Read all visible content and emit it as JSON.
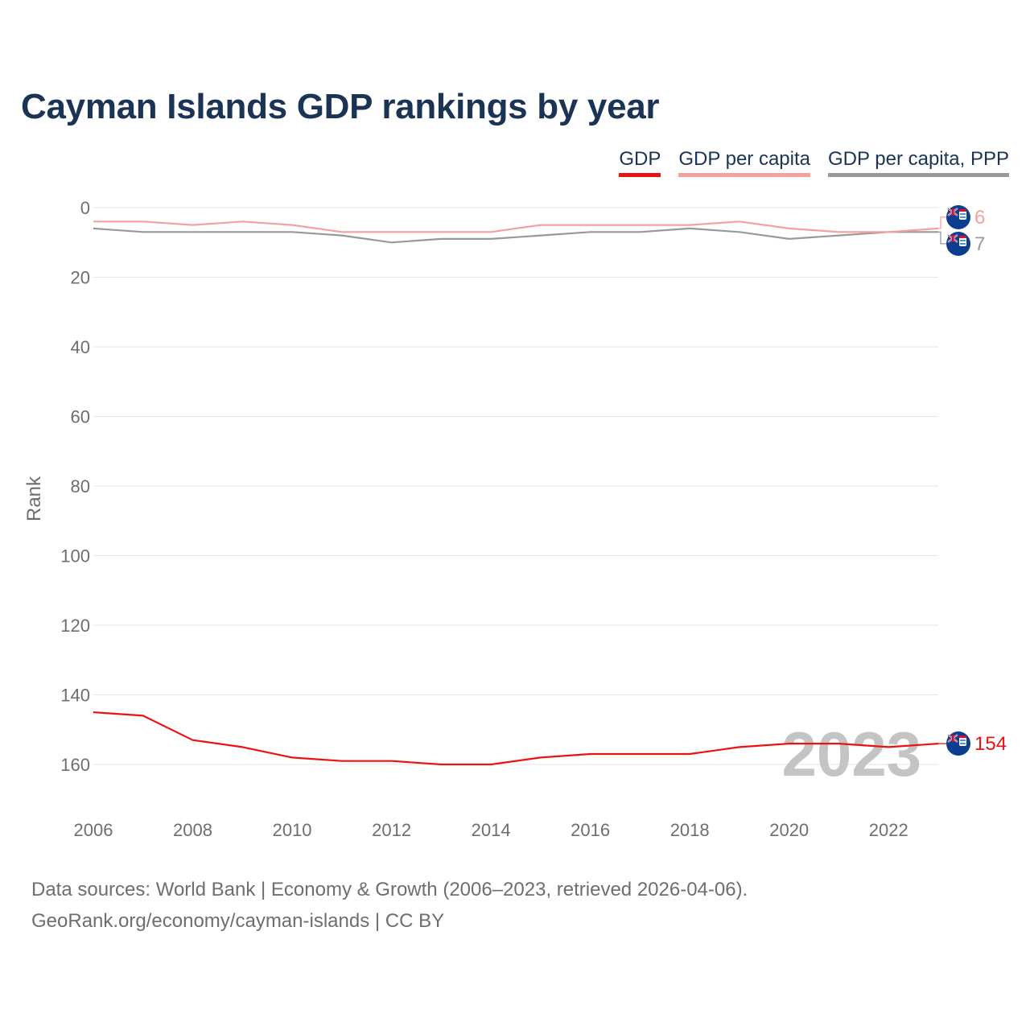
{
  "title": "Cayman Islands GDP rankings by year",
  "legend": [
    {
      "label": "GDP",
      "color": "#ee1111"
    },
    {
      "label": "GDP per capita",
      "color": "#f5a0a0"
    },
    {
      "label": "GDP per capita, PPP",
      "color": "#999999"
    }
  ],
  "footer": {
    "line1": "Data sources: World Bank | Economy & Growth (2006–2023, retrieved 2026-04-06).",
    "line2": "GeoRank.org/economy/cayman-islands | CC BY"
  },
  "chart_data": {
    "type": "line",
    "title": "Cayman Islands GDP rankings by year",
    "xlabel": "",
    "ylabel": "Rank",
    "x": [
      2006,
      2007,
      2008,
      2009,
      2010,
      2011,
      2012,
      2013,
      2014,
      2015,
      2016,
      2017,
      2018,
      2019,
      2020,
      2021,
      2022,
      2023
    ],
    "xlim": [
      2006,
      2023
    ],
    "xticks": [
      2006,
      2008,
      2010,
      2012,
      2014,
      2016,
      2018,
      2020,
      2022
    ],
    "ylim": [
      0,
      170
    ],
    "yticks": [
      0,
      20,
      40,
      60,
      80,
      100,
      120,
      140,
      160
    ],
    "y_inverted": true,
    "grid": true,
    "year_watermark": "2023",
    "series": [
      {
        "name": "GDP",
        "color": "#ee1111",
        "values": [
          145,
          146,
          153,
          155,
          158,
          159,
          159,
          160,
          160,
          158,
          157,
          157,
          157,
          155,
          154,
          154,
          155,
          154
        ],
        "end_label": "154"
      },
      {
        "name": "GDP per capita",
        "color": "#f5a0a0",
        "values": [
          4,
          4,
          5,
          4,
          5,
          7,
          7,
          7,
          7,
          5,
          5,
          5,
          5,
          4,
          6,
          7,
          7,
          6
        ],
        "end_label": "6"
      },
      {
        "name": "GDP per capita, PPP",
        "color": "#999999",
        "values": [
          6,
          7,
          7,
          7,
          7,
          8,
          10,
          9,
          9,
          8,
          7,
          7,
          6,
          7,
          9,
          8,
          7,
          7
        ],
        "end_label": "7"
      }
    ]
  }
}
